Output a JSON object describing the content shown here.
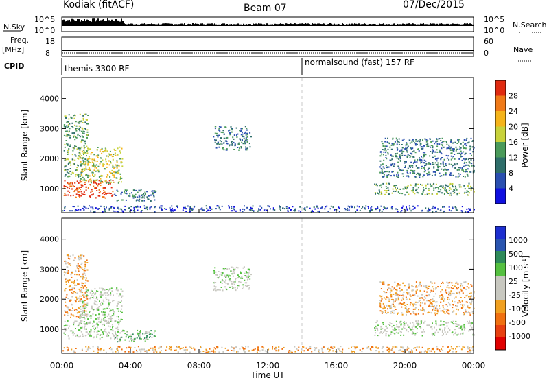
{
  "header": {
    "station": "Kodiak (fitACF)",
    "beam": "Beam 07",
    "date": "07/Dec/2015"
  },
  "meta_panels": {
    "nsky_label": "N.Sky",
    "nsearch_label": "N.Search",
    "freq_label": "Freq.",
    "freq_unit": "[MHz]",
    "nave_label": "Nave",
    "cpid_label": "CPID",
    "left_ticks_top": [
      "10^5",
      "10^0"
    ],
    "right_ticks_top": [
      "10^5",
      "10^0"
    ],
    "left_ticks_freq": [
      "18",
      "8"
    ],
    "right_ticks_nave": [
      "60",
      "0"
    ],
    "cpid_segments": [
      {
        "label": "themis 3300 RF",
        "start_hour": 0
      },
      {
        "label": "normalsound (fast) 157 RF",
        "start_hour": 14
      }
    ]
  },
  "colors": {
    "power_scale": [
      "#1010e0",
      "#2a4fb0",
      "#2e6e6a",
      "#4a9a5a",
      "#c8d23a",
      "#f5b41a",
      "#f07a18",
      "#e02a10"
    ],
    "velocity_scale": [
      "#1d2fd0",
      "#2a55b0",
      "#2e8a5a",
      "#55c040",
      "#c8c8c0",
      "#c8c8c0",
      "#f0a020",
      "#f07010",
      "#e84010",
      "#e00000"
    ]
  },
  "chart_data": [
    {
      "type": "heatmap",
      "name": "power-panel",
      "ylabel": "Slant Range [km]",
      "colorbar_label": "Power [dB]",
      "colorbar_ticks": [
        "28",
        "24",
        "20",
        "16",
        "12",
        "8",
        "4"
      ],
      "yticks": [
        "4000",
        "3000",
        "2000",
        "1000"
      ],
      "ylim": [
        200,
        4700
      ],
      "xlim": [
        0,
        24
      ],
      "blobs": [
        {
          "x0": 0.1,
          "x1": 3.0,
          "y0": 700,
          "y1": 1300,
          "level": 7
        },
        {
          "x0": 0.1,
          "x1": 1.5,
          "y0": 1400,
          "y1": 3500,
          "level": 3
        },
        {
          "x0": 1.0,
          "x1": 3.5,
          "y0": 1200,
          "y1": 2400,
          "level": 4
        },
        {
          "x0": 3.0,
          "x1": 5.5,
          "y0": 600,
          "y1": 1000,
          "level": 2
        },
        {
          "x0": 8.8,
          "x1": 11.0,
          "y0": 2300,
          "y1": 3100,
          "level": 2
        },
        {
          "x0": 18.2,
          "x1": 24.0,
          "y0": 800,
          "y1": 1200,
          "level": 3
        },
        {
          "x0": 18.5,
          "x1": 24.0,
          "y0": 1400,
          "y1": 2700,
          "level": 2
        },
        {
          "x0": 0.0,
          "x1": 24.0,
          "y0": 250,
          "y1": 450,
          "level": 1
        }
      ]
    },
    {
      "type": "heatmap",
      "name": "velocity-panel",
      "ylabel": "Slant Range [km]",
      "colorbar_label": "Velocity [m s^-1]",
      "colorbar_ticks": [
        "1000",
        "500",
        "100",
        "25",
        "-25",
        "-100",
        "-500",
        "-1000"
      ],
      "yticks": [
        "4000",
        "3000",
        "2000",
        "1000"
      ],
      "ylim": [
        200,
        4700
      ],
      "xlim": [
        0,
        24
      ],
      "xticks": [
        "00:00",
        "04:00",
        "08:00",
        "12:00",
        "16:00",
        "20:00",
        "00:00"
      ],
      "xlabel": "Time UT",
      "blobs": [
        {
          "x0": 0.1,
          "x1": 3.3,
          "y0": 700,
          "y1": 1300,
          "level": 4
        },
        {
          "x0": 0.1,
          "x1": 1.5,
          "y0": 1400,
          "y1": 3500,
          "level": 6
        },
        {
          "x0": 1.0,
          "x1": 3.5,
          "y0": 1200,
          "y1": 2400,
          "level": 4
        },
        {
          "x0": 3.0,
          "x1": 5.5,
          "y0": 600,
          "y1": 1000,
          "level": 3
        },
        {
          "x0": 8.8,
          "x1": 11.0,
          "y0": 2300,
          "y1": 3100,
          "level": 4
        },
        {
          "x0": 18.2,
          "x1": 24.0,
          "y0": 800,
          "y1": 1300,
          "level": 4
        },
        {
          "x0": 18.5,
          "x1": 24.0,
          "y0": 1500,
          "y1": 2600,
          "level": 6
        },
        {
          "x0": 0.0,
          "x1": 24.0,
          "y0": 250,
          "y1": 450,
          "level": 6
        }
      ]
    }
  ]
}
